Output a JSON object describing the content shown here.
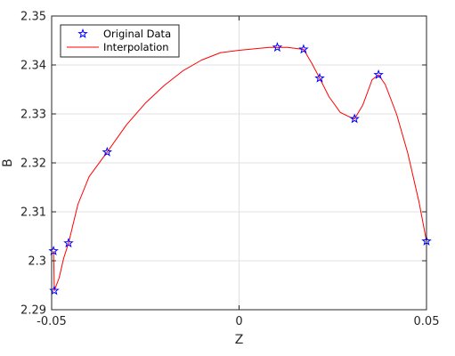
{
  "colors": {
    "background": "#ffffff",
    "axes_box": "#262626",
    "grid": "#e0e0e0",
    "data_marker": "#0000ff",
    "interpolation_line": "#ff0000"
  },
  "chart_data": {
    "type": "line",
    "title": "",
    "xlabel": "Z",
    "ylabel": "B",
    "xlim": [
      -0.05,
      0.05
    ],
    "ylim": [
      2.29,
      2.35
    ],
    "xticks": [
      -0.05,
      0,
      0.05
    ],
    "xtick_labels": [
      "-0.05",
      "0",
      "0.05"
    ],
    "yticks": [
      2.29,
      2.3,
      2.31,
      2.32,
      2.33,
      2.34,
      2.35
    ],
    "ytick_labels": [
      "2.29",
      "2.3",
      "2.31",
      "2.32",
      "2.33",
      "2.34",
      "2.35"
    ],
    "grid": true,
    "legend_position": "top-left",
    "series": [
      {
        "name": "Original Data",
        "style": "markers",
        "marker": "star",
        "color": "#0000ff",
        "x": [
          -0.0495,
          -0.0493,
          -0.0455,
          -0.0352,
          0.0102,
          0.0172,
          0.0215,
          0.0308,
          0.0372,
          0.05
        ],
        "y": [
          2.302,
          2.2939,
          2.3036,
          2.3222,
          2.3436,
          2.3432,
          2.3373,
          2.329,
          2.338,
          2.304
        ]
      },
      {
        "name": "Interpolation",
        "style": "line",
        "color": "#ff0000",
        "x": [
          -0.0495,
          -0.0494,
          -0.0493,
          -0.048,
          -0.0468,
          -0.0455,
          -0.043,
          -0.04,
          -0.0352,
          -0.03,
          -0.025,
          -0.02,
          -0.015,
          -0.01,
          -0.005,
          0.0,
          0.004,
          0.008,
          0.0102,
          0.013,
          0.016,
          0.0172,
          0.0195,
          0.0215,
          0.024,
          0.027,
          0.03,
          0.0308,
          0.033,
          0.0355,
          0.0372,
          0.039,
          0.042,
          0.045,
          0.048,
          0.05
        ],
        "y": [
          2.302,
          2.2985,
          2.2939,
          2.2965,
          2.3005,
          2.3036,
          2.3115,
          2.3172,
          2.3222,
          2.3278,
          2.3322,
          2.3358,
          2.3388,
          2.341,
          2.3425,
          2.343,
          2.3433,
          2.3436,
          2.3436,
          2.3436,
          2.3433,
          2.3432,
          2.3402,
          2.3373,
          2.3335,
          2.3303,
          2.3292,
          2.329,
          2.3318,
          2.337,
          2.338,
          2.336,
          2.33,
          2.322,
          2.312,
          2.304
        ]
      }
    ]
  }
}
